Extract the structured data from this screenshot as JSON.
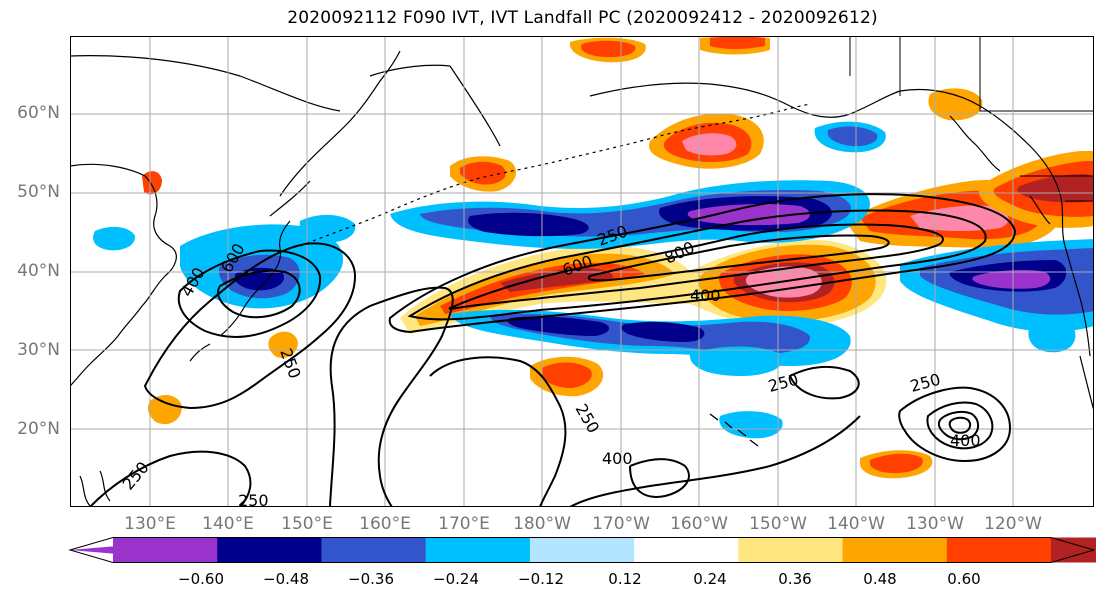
{
  "title": "2020092112 F090 IVT, IVT Landfall PC (2020092412 - 2020092612)",
  "lat_labels": [
    "60°N",
    "50°N",
    "40°N",
    "30°N",
    "20°N"
  ],
  "lon_labels": [
    "130°E",
    "140°E",
    "150°E",
    "160°E",
    "170°E",
    "180°W",
    "170°W",
    "160°W",
    "150°W",
    "140°W",
    "130°W",
    "120°W"
  ],
  "colorbar": {
    "ticks": [
      "−0.60",
      "−0.48",
      "−0.36",
      "−0.24",
      "−0.12",
      "0.12",
      "0.24",
      "0.36",
      "0.48",
      "0.60"
    ],
    "colors": [
      "#9933cc",
      "#00008b",
      "#3355cc",
      "#00bfff",
      "#b3e5ff",
      "#ffffff",
      "#ffe680",
      "#ffa500",
      "#ff4000",
      "#b22222",
      "#ff88aa"
    ]
  },
  "contour_labels": [
    "250",
    "400",
    "600",
    "800",
    "250",
    "400",
    "600",
    "250",
    "250",
    "400",
    "250",
    "400",
    "250",
    "250"
  ],
  "colors": {
    "coast": "#000000",
    "grid": "#aaaaaa",
    "contour": "#000000",
    "axis_text": "#777777"
  }
}
